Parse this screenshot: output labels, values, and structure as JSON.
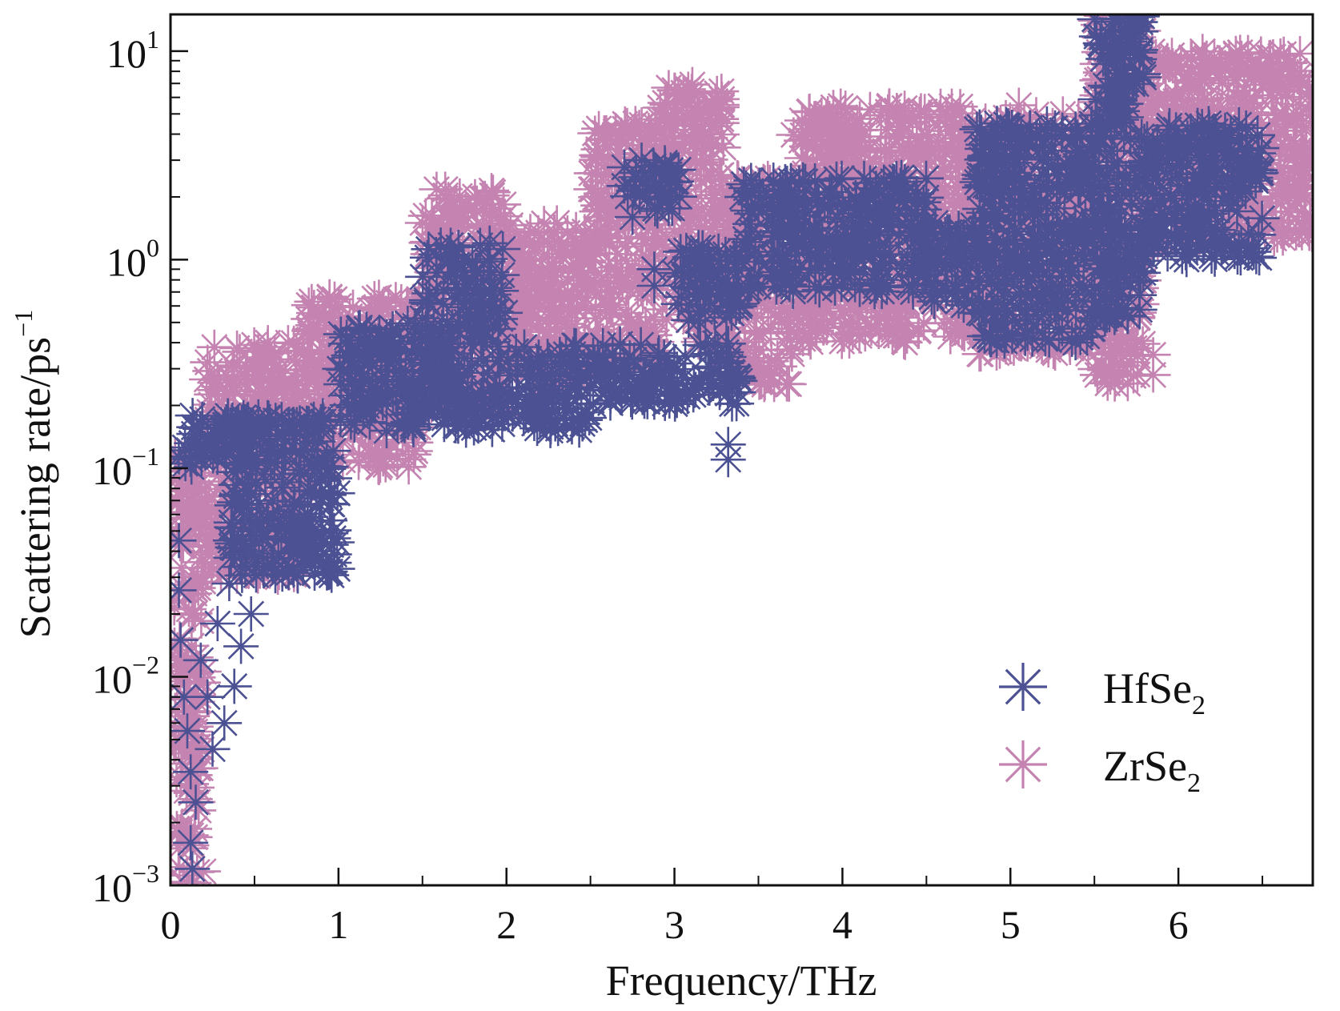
{
  "chart_data": {
    "type": "scatter",
    "marker": "asterisk",
    "xlabel": "Frequency/THz",
    "ylabel": {
      "base": "Scattering rate/ps",
      "exponent": "−1"
    },
    "xlim": [
      0,
      6.8
    ],
    "ylim": [
      0.001,
      15
    ],
    "yscale": "log",
    "x_ticks": [
      {
        "value": 0,
        "label": "0"
      },
      {
        "value": 1,
        "label": "1"
      },
      {
        "value": 2,
        "label": "2"
      },
      {
        "value": 3,
        "label": "3"
      },
      {
        "value": 4,
        "label": "4"
      },
      {
        "value": 5,
        "label": "5"
      },
      {
        "value": 6,
        "label": "6"
      }
    ],
    "y_ticks": [
      {
        "value": 0.001,
        "base": "10",
        "exponent": "−3"
      },
      {
        "value": 0.01,
        "base": "10",
        "exponent": "−2"
      },
      {
        "value": 0.1,
        "base": "10",
        "exponent": "−1"
      },
      {
        "value": 1,
        "base": "10",
        "exponent": "0"
      },
      {
        "value": 10,
        "base": "10",
        "exponent": "1"
      }
    ],
    "legend_position": "bottom-right",
    "series": [
      {
        "name": "ZrSe2",
        "label_base": "ZrSe",
        "label_sub": "2",
        "color": "#c483b0",
        "bands": [
          {
            "x0": 0.02,
            "x1": 0.2,
            "lo": 0.001,
            "hi": 0.12
          },
          {
            "x0": 0.2,
            "x1": 0.8,
            "lo": 0.03,
            "hi": 0.4
          },
          {
            "x0": 0.8,
            "x1": 1.5,
            "lo": 0.1,
            "hi": 0.7
          },
          {
            "x0": 1.5,
            "x1": 2.0,
            "lo": 0.2,
            "hi": 2.2
          },
          {
            "x0": 2.0,
            "x1": 2.5,
            "lo": 0.25,
            "hi": 1.5
          },
          {
            "x0": 2.5,
            "x1": 2.9,
            "lo": 0.3,
            "hi": 4.5
          },
          {
            "x0": 2.9,
            "x1": 3.3,
            "lo": 0.4,
            "hi": 7.0
          },
          {
            "x0": 3.3,
            "x1": 3.7,
            "lo": 0.25,
            "hi": 2.5
          },
          {
            "x0": 3.7,
            "x1": 4.8,
            "lo": 0.4,
            "hi": 5.5
          },
          {
            "x0": 4.8,
            "x1": 5.5,
            "lo": 0.35,
            "hi": 5.0
          },
          {
            "x0": 5.5,
            "x1": 5.8,
            "lo": 0.25,
            "hi": 15.0
          },
          {
            "x0": 5.8,
            "x1": 6.8,
            "lo": 1.2,
            "hi": 10.0
          }
        ],
        "points": [
          {
            "x": 0.58,
            "y": 0.4
          },
          {
            "x": 0.7,
            "y": 0.4
          },
          {
            "x": 1.5,
            "y": 1.5
          },
          {
            "x": 2.3,
            "y": 1.5
          },
          {
            "x": 2.65,
            "y": 4.0
          },
          {
            "x": 3.0,
            "y": 6.5
          },
          {
            "x": 3.8,
            "y": 0.42
          },
          {
            "x": 5.05,
            "y": 5.5
          },
          {
            "x": 5.85,
            "y": 0.28
          },
          {
            "x": 5.85,
            "y": 0.35
          },
          {
            "x": 6.75,
            "y": 3.2
          },
          {
            "x": 6.75,
            "y": 1.6
          }
        ]
      },
      {
        "name": "HfSe2",
        "label_base": "HfSe",
        "label_sub": "2",
        "color": "#4b5192",
        "bands": [
          {
            "x0": 0.02,
            "x1": 0.35,
            "lo": 0.1,
            "hi": 0.18
          },
          {
            "x0": 0.35,
            "x1": 1.0,
            "lo": 0.03,
            "hi": 0.18
          },
          {
            "x0": 1.0,
            "x1": 1.5,
            "lo": 0.15,
            "hi": 0.5
          },
          {
            "x0": 1.5,
            "x1": 2.0,
            "lo": 0.15,
            "hi": 1.2
          },
          {
            "x0": 2.0,
            "x1": 2.5,
            "lo": 0.15,
            "hi": 0.4
          },
          {
            "x0": 2.5,
            "x1": 3.4,
            "lo": 0.2,
            "hi": 0.4
          },
          {
            "x0": 2.7,
            "x1": 3.05,
            "lo": 1.7,
            "hi": 3.0
          },
          {
            "x0": 3.0,
            "x1": 3.4,
            "lo": 0.5,
            "hi": 1.2
          },
          {
            "x0": 3.4,
            "x1": 4.5,
            "lo": 0.7,
            "hi": 2.5
          },
          {
            "x0": 4.5,
            "x1": 4.8,
            "lo": 0.6,
            "hi": 1.5
          },
          {
            "x0": 4.8,
            "x1": 5.5,
            "lo": 0.4,
            "hi": 4.5
          },
          {
            "x0": 5.5,
            "x1": 5.8,
            "lo": 0.5,
            "hi": 15.0
          },
          {
            "x0": 5.8,
            "x1": 6.5,
            "lo": 1.0,
            "hi": 4.5
          }
        ],
        "points": [
          {
            "x": 0.05,
            "y": 0.026
          },
          {
            "x": 0.05,
            "y": 0.045
          },
          {
            "x": 0.06,
            "y": 0.015
          },
          {
            "x": 0.08,
            "y": 0.008
          },
          {
            "x": 0.1,
            "y": 0.0055
          },
          {
            "x": 0.12,
            "y": 0.0035
          },
          {
            "x": 0.15,
            "y": 0.0025
          },
          {
            "x": 0.12,
            "y": 0.0016
          },
          {
            "x": 0.13,
            "y": 0.0012
          },
          {
            "x": 0.18,
            "y": 0.012
          },
          {
            "x": 0.22,
            "y": 0.008
          },
          {
            "x": 0.25,
            "y": 0.0045
          },
          {
            "x": 0.28,
            "y": 0.018
          },
          {
            "x": 0.32,
            "y": 0.006
          },
          {
            "x": 0.35,
            "y": 0.028
          },
          {
            "x": 0.38,
            "y": 0.009
          },
          {
            "x": 0.42,
            "y": 0.014
          },
          {
            "x": 0.45,
            "y": 0.04
          },
          {
            "x": 0.48,
            "y": 0.02
          },
          {
            "x": 0.55,
            "y": 0.05
          },
          {
            "x": 0.6,
            "y": 0.035
          },
          {
            "x": 1.9,
            "y": 1.2
          },
          {
            "x": 2.75,
            "y": 1.6
          },
          {
            "x": 2.88,
            "y": 0.75
          },
          {
            "x": 2.88,
            "y": 0.9
          },
          {
            "x": 3.32,
            "y": 0.11
          },
          {
            "x": 3.32,
            "y": 0.13
          },
          {
            "x": 4.2,
            "y": 2.2
          },
          {
            "x": 4.2,
            "y": 0.75
          },
          {
            "x": 4.42,
            "y": 0.7
          },
          {
            "x": 4.92,
            "y": 4.5
          },
          {
            "x": 5.05,
            "y": 3.5
          },
          {
            "x": 5.72,
            "y": 14.0
          },
          {
            "x": 6.18,
            "y": 4.5
          },
          {
            "x": 5.85,
            "y": 3.5
          }
        ]
      }
    ]
  }
}
